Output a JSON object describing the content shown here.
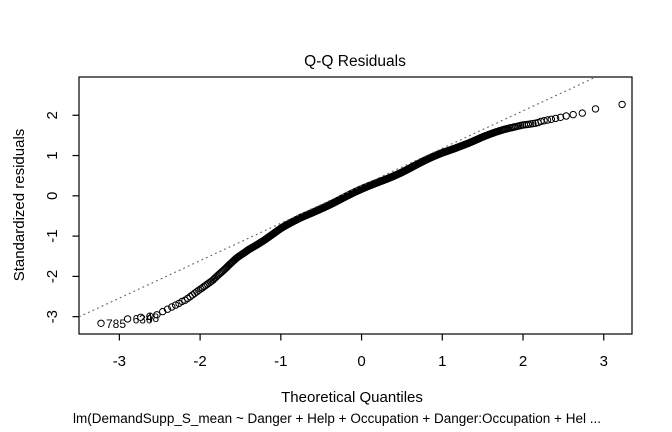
{
  "chart_data": {
    "type": "scatter",
    "subtype": "qqnorm-residuals",
    "title": "Q-Q Residuals",
    "xlabel": "Theoretical Quantiles",
    "ylabel": "Standardized residuals",
    "caption": "lm(DemandSupp_S_mean ~ Danger + Help + Occupation + Danger:Occupation + Hel ...",
    "x_ticks": [
      -3,
      -2,
      -1,
      0,
      1,
      2,
      3
    ],
    "y_ticks": [
      -3,
      -2,
      -1,
      0,
      1,
      2
    ],
    "xlim": [
      -3.5,
      3.35
    ],
    "ylim": [
      -3.43,
      2.95
    ],
    "grid": false,
    "legend": null,
    "n_points": 800,
    "point_color": "#000000",
    "reference_line": {
      "style": "dotted",
      "color": "#606060",
      "intercept": 0.25,
      "slope": 0.93
    },
    "curve_anchors": [
      [
        -3.27,
        -3.18
      ],
      [
        -2.96,
        -3.07
      ],
      [
        -2.75,
        -3.02
      ],
      [
        -2.55,
        -2.97
      ],
      [
        -2.45,
        -2.86
      ],
      [
        -2.25,
        -2.66
      ],
      [
        -2.05,
        -2.38
      ],
      [
        -1.85,
        -2.12
      ],
      [
        -1.7,
        -1.85
      ],
      [
        -1.55,
        -1.55
      ],
      [
        -1.4,
        -1.32
      ],
      [
        -1.2,
        -1.08
      ],
      [
        -1.0,
        -0.82
      ],
      [
        -0.75,
        -0.55
      ],
      [
        -0.5,
        -0.3
      ],
      [
        -0.25,
        -0.07
      ],
      [
        0.0,
        0.15
      ],
      [
        0.25,
        0.38
      ],
      [
        0.5,
        0.6
      ],
      [
        0.75,
        0.83
      ],
      [
        1.0,
        1.06
      ],
      [
        1.25,
        1.27
      ],
      [
        1.5,
        1.46
      ],
      [
        1.75,
        1.62
      ],
      [
        2.0,
        1.77
      ],
      [
        2.2,
        1.84
      ],
      [
        2.4,
        1.92
      ],
      [
        2.6,
        2.01
      ],
      [
        2.75,
        2.06
      ],
      [
        2.9,
        2.16
      ],
      [
        3.23,
        2.27
      ]
    ],
    "outliers": [
      {
        "label": "785",
        "q": -3.23,
        "v": -3.18
      },
      {
        "label": "630",
        "q": -2.9,
        "v": -3.07
      },
      {
        "label": "48",
        "q": -2.75,
        "v": -3.02
      }
    ]
  }
}
